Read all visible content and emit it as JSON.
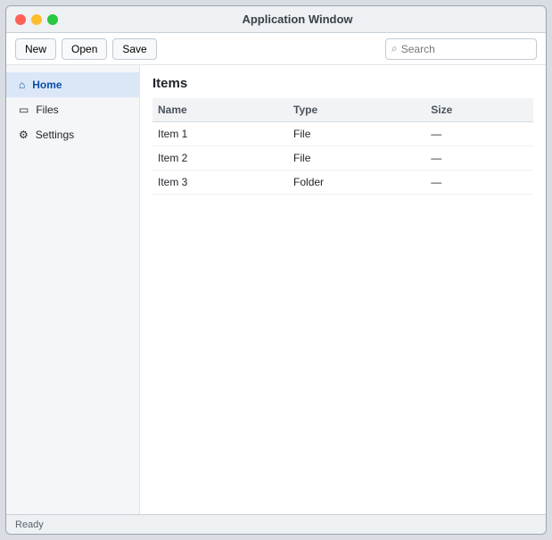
{
  "window": {
    "title": "Application Window"
  },
  "toolbar": {
    "new_label": "New",
    "open_label": "Open",
    "save_label": "Save",
    "search_placeholder": "Search"
  },
  "sidebar": {
    "items": [
      {
        "label": "Home",
        "icon": "home-icon"
      },
      {
        "label": "Files",
        "icon": "folder-icon"
      },
      {
        "label": "Settings",
        "icon": "gear-icon"
      }
    ]
  },
  "main": {
    "heading": "Items",
    "columns": [
      "Name",
      "Type",
      "Size"
    ],
    "rows": [
      [
        "Item 1",
        "File",
        "—"
      ],
      [
        "Item 2",
        "File",
        "—"
      ],
      [
        "Item 3",
        "Folder",
        "—"
      ]
    ]
  },
  "status": {
    "text": "Ready"
  }
}
